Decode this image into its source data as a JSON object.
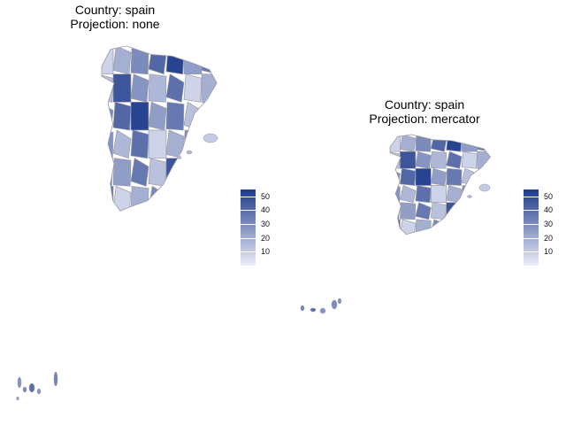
{
  "palette": {
    "low": "#eceef9",
    "high": "#1e3a8a",
    "border": "#9a9aa6"
  },
  "panels": [
    {
      "id": "left",
      "title_line1": "Country: spain",
      "title_line2": "Projection: none",
      "legend": {
        "min": 0,
        "max": 55,
        "ticks": [
          "50",
          "40",
          "30",
          "20",
          "10"
        ],
        "tick_values": [
          50,
          40,
          30,
          20,
          10
        ]
      }
    },
    {
      "id": "right",
      "title_line1": "Country: spain",
      "title_line2": "Projection: mercator",
      "legend": {
        "min": 0,
        "max": 55,
        "ticks": [
          "50",
          "40",
          "30",
          "20",
          "10"
        ],
        "tick_values": [
          50,
          40,
          30,
          20,
          10
        ]
      }
    }
  ]
}
